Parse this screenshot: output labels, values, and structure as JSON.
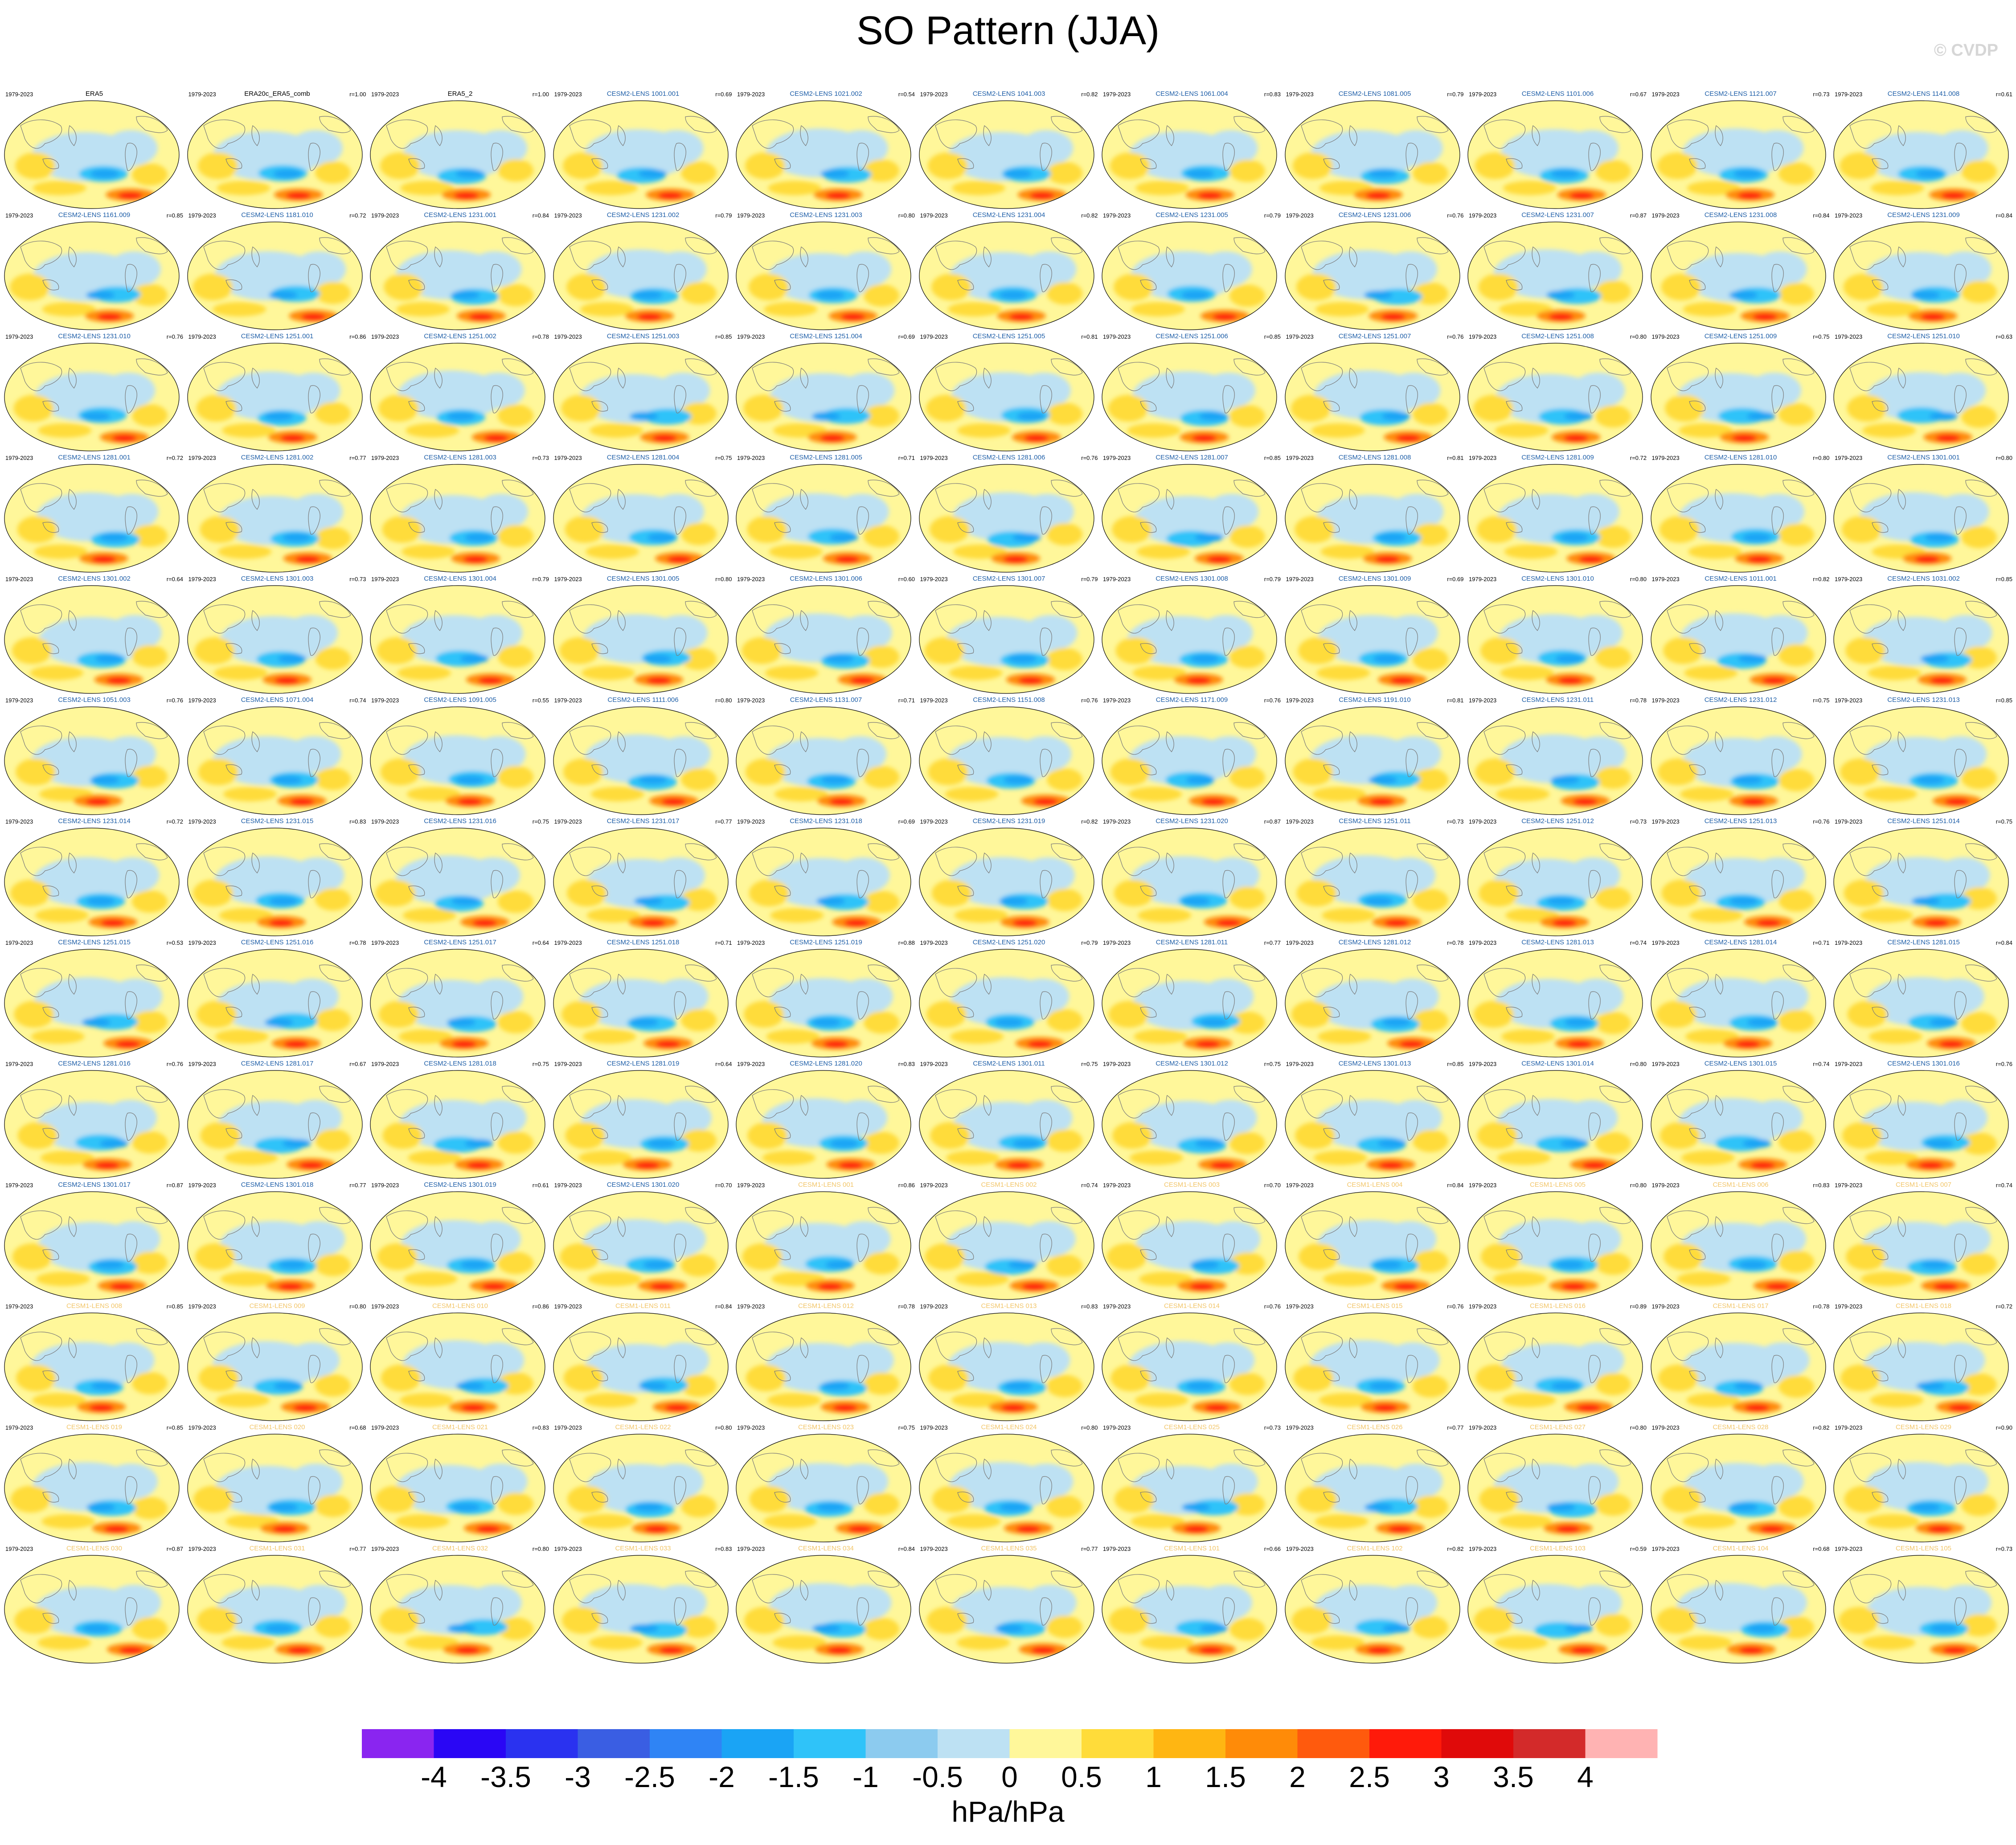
{
  "title": "SO Pattern (JJA)",
  "watermark": "© CVDP",
  "colors": {
    "obs_title": "#000000",
    "cesm2_title": "#1f5fa8",
    "cesm1_title": "#f2c66a",
    "land_line": "#7a7a7a"
  },
  "chart_data": {
    "type": "heatmap",
    "description_units": "hPa/hPa",
    "colorbar": {
      "label": "hPa/hPa",
      "ticks": [
        "-4",
        "-3.5",
        "-3",
        "-2.5",
        "-2",
        "-1.5",
        "-1",
        "-0.5",
        "0",
        "0.5",
        "1",
        "1.5",
        "2",
        "2.5",
        "3",
        "3.5",
        "4"
      ],
      "colors": [
        "#8a25f0",
        "#2a06f5",
        "#2a32f0",
        "#3a5ee3",
        "#2f84f5",
        "#1aa4f5",
        "#2fc3f9",
        "#8ccbef",
        "#bde1f3",
        "#fff79a",
        "#ffdc3a",
        "#ffb612",
        "#ff8b08",
        "#ff5a0d",
        "#ff1a0a",
        "#e00a0a",
        "#d32a2a",
        "#ffb3b3"
      ]
    },
    "panels": [
      {
        "label": "ERA5",
        "period": "1979-2023",
        "r": "",
        "src": "obs"
      },
      {
        "label": "ERA20c_ERA5_comb",
        "period": "1979-2023",
        "r": "r=1.00",
        "src": "obs"
      },
      {
        "label": "ERA5_2",
        "period": "1979-2023",
        "r": "r=1.00",
        "src": "obs"
      },
      {
        "label": "CESM2-LENS 1001.001",
        "period": "1979-2023",
        "r": "r=0.69",
        "src": "cesm2"
      },
      {
        "label": "CESM2-LENS 1021.002",
        "period": "1979-2023",
        "r": "r=0.54",
        "src": "cesm2"
      },
      {
        "label": "CESM2-LENS 1041.003",
        "period": "1979-2023",
        "r": "r=0.82",
        "src": "cesm2"
      },
      {
        "label": "CESM2-LENS 1061.004",
        "period": "1979-2023",
        "r": "r=0.83",
        "src": "cesm2"
      },
      {
        "label": "CESM2-LENS 1081.005",
        "period": "1979-2023",
        "r": "r=0.79",
        "src": "cesm2"
      },
      {
        "label": "CESM2-LENS 1101.006",
        "period": "1979-2023",
        "r": "r=0.67",
        "src": "cesm2"
      },
      {
        "label": "CESM2-LENS 1121.007",
        "period": "1979-2023",
        "r": "r=0.73",
        "src": "cesm2"
      },
      {
        "label": "CESM2-LENS 1141.008",
        "period": "1979-2023",
        "r": "r=0.61",
        "src": "cesm2"
      },
      {
        "label": "CESM2-LENS 1161.009",
        "period": "1979-2023",
        "r": "r=0.85",
        "src": "cesm2"
      },
      {
        "label": "CESM2-LENS 1181.010",
        "period": "1979-2023",
        "r": "r=0.72",
        "src": "cesm2"
      },
      {
        "label": "CESM2-LENS 1231.001",
        "period": "1979-2023",
        "r": "r=0.84",
        "src": "cesm2"
      },
      {
        "label": "CESM2-LENS 1231.002",
        "period": "1979-2023",
        "r": "r=0.79",
        "src": "cesm2"
      },
      {
        "label": "CESM2-LENS 1231.003",
        "period": "1979-2023",
        "r": "r=0.80",
        "src": "cesm2"
      },
      {
        "label": "CESM2-LENS 1231.004",
        "period": "1979-2023",
        "r": "r=0.82",
        "src": "cesm2"
      },
      {
        "label": "CESM2-LENS 1231.005",
        "period": "1979-2023",
        "r": "r=0.79",
        "src": "cesm2"
      },
      {
        "label": "CESM2-LENS 1231.006",
        "period": "1979-2023",
        "r": "r=0.76",
        "src": "cesm2"
      },
      {
        "label": "CESM2-LENS 1231.007",
        "period": "1979-2023",
        "r": "r=0.87",
        "src": "cesm2"
      },
      {
        "label": "CESM2-LENS 1231.008",
        "period": "1979-2023",
        "r": "r=0.84",
        "src": "cesm2"
      },
      {
        "label": "CESM2-LENS 1231.009",
        "period": "1979-2023",
        "r": "r=0.84",
        "src": "cesm2"
      },
      {
        "label": "CESM2-LENS 1231.010",
        "period": "1979-2023",
        "r": "r=0.76",
        "src": "cesm2"
      },
      {
        "label": "CESM2-LENS 1251.001",
        "period": "1979-2023",
        "r": "r=0.86",
        "src": "cesm2"
      },
      {
        "label": "CESM2-LENS 1251.002",
        "period": "1979-2023",
        "r": "r=0.78",
        "src": "cesm2"
      },
      {
        "label": "CESM2-LENS 1251.003",
        "period": "1979-2023",
        "r": "r=0.85",
        "src": "cesm2"
      },
      {
        "label": "CESM2-LENS 1251.004",
        "period": "1979-2023",
        "r": "r=0.69",
        "src": "cesm2"
      },
      {
        "label": "CESM2-LENS 1251.005",
        "period": "1979-2023",
        "r": "r=0.81",
        "src": "cesm2"
      },
      {
        "label": "CESM2-LENS 1251.006",
        "period": "1979-2023",
        "r": "r=0.85",
        "src": "cesm2"
      },
      {
        "label": "CESM2-LENS 1251.007",
        "period": "1979-2023",
        "r": "r=0.76",
        "src": "cesm2"
      },
      {
        "label": "CESM2-LENS 1251.008",
        "period": "1979-2023",
        "r": "r=0.80",
        "src": "cesm2"
      },
      {
        "label": "CESM2-LENS 1251.009",
        "period": "1979-2023",
        "r": "r=0.75",
        "src": "cesm2"
      },
      {
        "label": "CESM2-LENS 1251.010",
        "period": "1979-2023",
        "r": "r=0.63",
        "src": "cesm2"
      },
      {
        "label": "CESM2-LENS 1281.001",
        "period": "1979-2023",
        "r": "r=0.72",
        "src": "cesm2"
      },
      {
        "label": "CESM2-LENS 1281.002",
        "period": "1979-2023",
        "r": "r=0.77",
        "src": "cesm2"
      },
      {
        "label": "CESM2-LENS 1281.003",
        "period": "1979-2023",
        "r": "r=0.73",
        "src": "cesm2"
      },
      {
        "label": "CESM2-LENS 1281.004",
        "period": "1979-2023",
        "r": "r=0.75",
        "src": "cesm2"
      },
      {
        "label": "CESM2-LENS 1281.005",
        "period": "1979-2023",
        "r": "r=0.71",
        "src": "cesm2"
      },
      {
        "label": "CESM2-LENS 1281.006",
        "period": "1979-2023",
        "r": "r=0.76",
        "src": "cesm2"
      },
      {
        "label": "CESM2-LENS 1281.007",
        "period": "1979-2023",
        "r": "r=0.85",
        "src": "cesm2"
      },
      {
        "label": "CESM2-LENS 1281.008",
        "period": "1979-2023",
        "r": "r=0.81",
        "src": "cesm2"
      },
      {
        "label": "CESM2-LENS 1281.009",
        "period": "1979-2023",
        "r": "r=0.72",
        "src": "cesm2"
      },
      {
        "label": "CESM2-LENS 1281.010",
        "period": "1979-2023",
        "r": "r=0.80",
        "src": "cesm2"
      },
      {
        "label": "CESM2-LENS 1301.001",
        "period": "1979-2023",
        "r": "r=0.80",
        "src": "cesm2"
      },
      {
        "label": "CESM2-LENS 1301.002",
        "period": "1979-2023",
        "r": "r=0.64",
        "src": "cesm2"
      },
      {
        "label": "CESM2-LENS 1301.003",
        "period": "1979-2023",
        "r": "r=0.73",
        "src": "cesm2"
      },
      {
        "label": "CESM2-LENS 1301.004",
        "period": "1979-2023",
        "r": "r=0.79",
        "src": "cesm2"
      },
      {
        "label": "CESM2-LENS 1301.005",
        "period": "1979-2023",
        "r": "r=0.80",
        "src": "cesm2"
      },
      {
        "label": "CESM2-LENS 1301.006",
        "period": "1979-2023",
        "r": "r=0.60",
        "src": "cesm2"
      },
      {
        "label": "CESM2-LENS 1301.007",
        "period": "1979-2023",
        "r": "r=0.79",
        "src": "cesm2"
      },
      {
        "label": "CESM2-LENS 1301.008",
        "period": "1979-2023",
        "r": "r=0.79",
        "src": "cesm2"
      },
      {
        "label": "CESM2-LENS 1301.009",
        "period": "1979-2023",
        "r": "r=0.69",
        "src": "cesm2"
      },
      {
        "label": "CESM2-LENS 1301.010",
        "period": "1979-2023",
        "r": "r=0.80",
        "src": "cesm2"
      },
      {
        "label": "CESM2-LENS 1011.001",
        "period": "1979-2023",
        "r": "r=0.82",
        "src": "cesm2"
      },
      {
        "label": "CESM2-LENS 1031.002",
        "period": "1979-2023",
        "r": "r=0.85",
        "src": "cesm2"
      },
      {
        "label": "CESM2-LENS 1051.003",
        "period": "1979-2023",
        "r": "r=0.76",
        "src": "cesm2"
      },
      {
        "label": "CESM2-LENS 1071.004",
        "period": "1979-2023",
        "r": "r=0.74",
        "src": "cesm2"
      },
      {
        "label": "CESM2-LENS 1091.005",
        "period": "1979-2023",
        "r": "r=0.55",
        "src": "cesm2"
      },
      {
        "label": "CESM2-LENS 1111.006",
        "period": "1979-2023",
        "r": "r=0.80",
        "src": "cesm2"
      },
      {
        "label": "CESM2-LENS 1131.007",
        "period": "1979-2023",
        "r": "r=0.71",
        "src": "cesm2"
      },
      {
        "label": "CESM2-LENS 1151.008",
        "period": "1979-2023",
        "r": "r=0.76",
        "src": "cesm2"
      },
      {
        "label": "CESM2-LENS 1171.009",
        "period": "1979-2023",
        "r": "r=0.76",
        "src": "cesm2"
      },
      {
        "label": "CESM2-LENS 1191.010",
        "period": "1979-2023",
        "r": "r=0.81",
        "src": "cesm2"
      },
      {
        "label": "CESM2-LENS 1231.011",
        "period": "1979-2023",
        "r": "r=0.78",
        "src": "cesm2"
      },
      {
        "label": "CESM2-LENS 1231.012",
        "period": "1979-2023",
        "r": "r=0.75",
        "src": "cesm2"
      },
      {
        "label": "CESM2-LENS 1231.013",
        "period": "1979-2023",
        "r": "r=0.85",
        "src": "cesm2"
      },
      {
        "label": "CESM2-LENS 1231.014",
        "period": "1979-2023",
        "r": "r=0.72",
        "src": "cesm2"
      },
      {
        "label": "CESM2-LENS 1231.015",
        "period": "1979-2023",
        "r": "r=0.83",
        "src": "cesm2"
      },
      {
        "label": "CESM2-LENS 1231.016",
        "period": "1979-2023",
        "r": "r=0.75",
        "src": "cesm2"
      },
      {
        "label": "CESM2-LENS 1231.017",
        "period": "1979-2023",
        "r": "r=0.77",
        "src": "cesm2"
      },
      {
        "label": "CESM2-LENS 1231.018",
        "period": "1979-2023",
        "r": "r=0.69",
        "src": "cesm2"
      },
      {
        "label": "CESM2-LENS 1231.019",
        "period": "1979-2023",
        "r": "r=0.82",
        "src": "cesm2"
      },
      {
        "label": "CESM2-LENS 1231.020",
        "period": "1979-2023",
        "r": "r=0.87",
        "src": "cesm2"
      },
      {
        "label": "CESM2-LENS 1251.011",
        "period": "1979-2023",
        "r": "r=0.73",
        "src": "cesm2"
      },
      {
        "label": "CESM2-LENS 1251.012",
        "period": "1979-2023",
        "r": "r=0.73",
        "src": "cesm2"
      },
      {
        "label": "CESM2-LENS 1251.013",
        "period": "1979-2023",
        "r": "r=0.76",
        "src": "cesm2"
      },
      {
        "label": "CESM2-LENS 1251.014",
        "period": "1979-2023",
        "r": "r=0.75",
        "src": "cesm2"
      },
      {
        "label": "CESM2-LENS 1251.015",
        "period": "1979-2023",
        "r": "r=0.53",
        "src": "cesm2"
      },
      {
        "label": "CESM2-LENS 1251.016",
        "period": "1979-2023",
        "r": "r=0.78",
        "src": "cesm2"
      },
      {
        "label": "CESM2-LENS 1251.017",
        "period": "1979-2023",
        "r": "r=0.64",
        "src": "cesm2"
      },
      {
        "label": "CESM2-LENS 1251.018",
        "period": "1979-2023",
        "r": "r=0.71",
        "src": "cesm2"
      },
      {
        "label": "CESM2-LENS 1251.019",
        "period": "1979-2023",
        "r": "r=0.88",
        "src": "cesm2"
      },
      {
        "label": "CESM2-LENS 1251.020",
        "period": "1979-2023",
        "r": "r=0.79",
        "src": "cesm2"
      },
      {
        "label": "CESM2-LENS 1281.011",
        "period": "1979-2023",
        "r": "r=0.77",
        "src": "cesm2"
      },
      {
        "label": "CESM2-LENS 1281.012",
        "period": "1979-2023",
        "r": "r=0.78",
        "src": "cesm2"
      },
      {
        "label": "CESM2-LENS 1281.013",
        "period": "1979-2023",
        "r": "r=0.74",
        "src": "cesm2"
      },
      {
        "label": "CESM2-LENS 1281.014",
        "period": "1979-2023",
        "r": "r=0.71",
        "src": "cesm2"
      },
      {
        "label": "CESM2-LENS 1281.015",
        "period": "1979-2023",
        "r": "r=0.84",
        "src": "cesm2"
      },
      {
        "label": "CESM2-LENS 1281.016",
        "period": "1979-2023",
        "r": "r=0.76",
        "src": "cesm2"
      },
      {
        "label": "CESM2-LENS 1281.017",
        "period": "1979-2023",
        "r": "r=0.67",
        "src": "cesm2"
      },
      {
        "label": "CESM2-LENS 1281.018",
        "period": "1979-2023",
        "r": "r=0.75",
        "src": "cesm2"
      },
      {
        "label": "CESM2-LENS 1281.019",
        "period": "1979-2023",
        "r": "r=0.64",
        "src": "cesm2"
      },
      {
        "label": "CESM2-LENS 1281.020",
        "period": "1979-2023",
        "r": "r=0.83",
        "src": "cesm2"
      },
      {
        "label": "CESM2-LENS 1301.011",
        "period": "1979-2023",
        "r": "r=0.75",
        "src": "cesm2"
      },
      {
        "label": "CESM2-LENS 1301.012",
        "period": "1979-2023",
        "r": "r=0.75",
        "src": "cesm2"
      },
      {
        "label": "CESM2-LENS 1301.013",
        "period": "1979-2023",
        "r": "r=0.85",
        "src": "cesm2"
      },
      {
        "label": "CESM2-LENS 1301.014",
        "period": "1979-2023",
        "r": "r=0.80",
        "src": "cesm2"
      },
      {
        "label": "CESM2-LENS 1301.015",
        "period": "1979-2023",
        "r": "r=0.74",
        "src": "cesm2"
      },
      {
        "label": "CESM2-LENS 1301.016",
        "period": "1979-2023",
        "r": "r=0.76",
        "src": "cesm2"
      },
      {
        "label": "CESM2-LENS 1301.017",
        "period": "1979-2023",
        "r": "r=0.87",
        "src": "cesm2"
      },
      {
        "label": "CESM2-LENS 1301.018",
        "period": "1979-2023",
        "r": "r=0.77",
        "src": "cesm2"
      },
      {
        "label": "CESM2-LENS 1301.019",
        "period": "1979-2023",
        "r": "r=0.61",
        "src": "cesm2"
      },
      {
        "label": "CESM2-LENS 1301.020",
        "period": "1979-2023",
        "r": "r=0.70",
        "src": "cesm2"
      },
      {
        "label": "CESM1-LENS 001",
        "period": "1979-2023",
        "r": "r=0.86",
        "src": "cesm1"
      },
      {
        "label": "CESM1-LENS 002",
        "period": "1979-2023",
        "r": "r=0.74",
        "src": "cesm1"
      },
      {
        "label": "CESM1-LENS 003",
        "period": "1979-2023",
        "r": "r=0.70",
        "src": "cesm1"
      },
      {
        "label": "CESM1-LENS 004",
        "period": "1979-2023",
        "r": "r=0.84",
        "src": "cesm1"
      },
      {
        "label": "CESM1-LENS 005",
        "period": "1979-2023",
        "r": "r=0.80",
        "src": "cesm1"
      },
      {
        "label": "CESM1-LENS 006",
        "period": "1979-2023",
        "r": "r=0.83",
        "src": "cesm1"
      },
      {
        "label": "CESM1-LENS 007",
        "period": "1979-2023",
        "r": "r=0.74",
        "src": "cesm1"
      },
      {
        "label": "CESM1-LENS 008",
        "period": "1979-2023",
        "r": "r=0.85",
        "src": "cesm1"
      },
      {
        "label": "CESM1-LENS 009",
        "period": "1979-2023",
        "r": "r=0.80",
        "src": "cesm1"
      },
      {
        "label": "CESM1-LENS 010",
        "period": "1979-2023",
        "r": "r=0.86",
        "src": "cesm1"
      },
      {
        "label": "CESM1-LENS 011",
        "period": "1979-2023",
        "r": "r=0.84",
        "src": "cesm1"
      },
      {
        "label": "CESM1-LENS 012",
        "period": "1979-2023",
        "r": "r=0.78",
        "src": "cesm1"
      },
      {
        "label": "CESM1-LENS 013",
        "period": "1979-2023",
        "r": "r=0.83",
        "src": "cesm1"
      },
      {
        "label": "CESM1-LENS 014",
        "period": "1979-2023",
        "r": "r=0.76",
        "src": "cesm1"
      },
      {
        "label": "CESM1-LENS 015",
        "period": "1979-2023",
        "r": "r=0.76",
        "src": "cesm1"
      },
      {
        "label": "CESM1-LENS 016",
        "period": "1979-2023",
        "r": "r=0.89",
        "src": "cesm1"
      },
      {
        "label": "CESM1-LENS 017",
        "period": "1979-2023",
        "r": "r=0.78",
        "src": "cesm1"
      },
      {
        "label": "CESM1-LENS 018",
        "period": "1979-2023",
        "r": "r=0.72",
        "src": "cesm1"
      },
      {
        "label": "CESM1-LENS 019",
        "period": "1979-2023",
        "r": "r=0.85",
        "src": "cesm1"
      },
      {
        "label": "CESM1-LENS 020",
        "period": "1979-2023",
        "r": "r=0.68",
        "src": "cesm1"
      },
      {
        "label": "CESM1-LENS 021",
        "period": "1979-2023",
        "r": "r=0.83",
        "src": "cesm1"
      },
      {
        "label": "CESM1-LENS 022",
        "period": "1979-2023",
        "r": "r=0.80",
        "src": "cesm1"
      },
      {
        "label": "CESM1-LENS 023",
        "period": "1979-2023",
        "r": "r=0.75",
        "src": "cesm1"
      },
      {
        "label": "CESM1-LENS 024",
        "period": "1979-2023",
        "r": "r=0.80",
        "src": "cesm1"
      },
      {
        "label": "CESM1-LENS 025",
        "period": "1979-2023",
        "r": "r=0.73",
        "src": "cesm1"
      },
      {
        "label": "CESM1-LENS 026",
        "period": "1979-2023",
        "r": "r=0.77",
        "src": "cesm1"
      },
      {
        "label": "CESM1-LENS 027",
        "period": "1979-2023",
        "r": "r=0.80",
        "src": "cesm1"
      },
      {
        "label": "CESM1-LENS 028",
        "period": "1979-2023",
        "r": "r=0.82",
        "src": "cesm1"
      },
      {
        "label": "CESM1-LENS 029",
        "period": "1979-2023",
        "r": "r=0.90",
        "src": "cesm1"
      },
      {
        "label": "CESM1-LENS 030",
        "period": "1979-2023",
        "r": "r=0.87",
        "src": "cesm1"
      },
      {
        "label": "CESM1-LENS 031",
        "period": "1979-2023",
        "r": "r=0.77",
        "src": "cesm1"
      },
      {
        "label": "CESM1-LENS 032",
        "period": "1979-2023",
        "r": "r=0.80",
        "src": "cesm1"
      },
      {
        "label": "CESM1-LENS 033",
        "period": "1979-2023",
        "r": "r=0.83",
        "src": "cesm1"
      },
      {
        "label": "CESM1-LENS 034",
        "period": "1979-2023",
        "r": "r=0.84",
        "src": "cesm1"
      },
      {
        "label": "CESM1-LENS 035",
        "period": "1979-2023",
        "r": "r=0.77",
        "src": "cesm1"
      },
      {
        "label": "CESM1-LENS 101",
        "period": "1979-2023",
        "r": "r=0.66",
        "src": "cesm1"
      },
      {
        "label": "CESM1-LENS 102",
        "period": "1979-2023",
        "r": "r=0.82",
        "src": "cesm1"
      },
      {
        "label": "CESM1-LENS 103",
        "period": "1979-2023",
        "r": "r=0.59",
        "src": "cesm1"
      },
      {
        "label": "CESM1-LENS 104",
        "period": "1979-2023",
        "r": "r=0.68",
        "src": "cesm1"
      },
      {
        "label": "CESM1-LENS 105",
        "period": "1979-2023",
        "r": "r=0.73",
        "src": "cesm1"
      }
    ]
  }
}
